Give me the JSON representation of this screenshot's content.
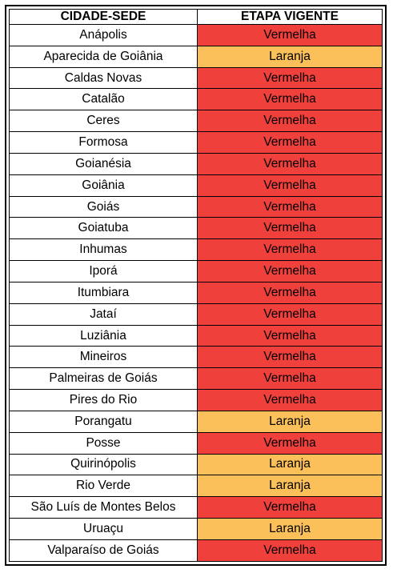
{
  "table": {
    "headers": {
      "city": "CIDADE-SEDE",
      "stage": "ETAPA VIGENTE"
    },
    "stage_colors": {
      "Vermelha": "#f0403c",
      "Laranja": "#fbc05a"
    },
    "rows": [
      {
        "city": "Anápolis",
        "stage": "Vermelha"
      },
      {
        "city": "Aparecida de Goiânia",
        "stage": "Laranja"
      },
      {
        "city": "Caldas Novas",
        "stage": "Vermelha"
      },
      {
        "city": "Catalão",
        "stage": "Vermelha"
      },
      {
        "city": "Ceres",
        "stage": "Vermelha"
      },
      {
        "city": "Formosa",
        "stage": "Vermelha"
      },
      {
        "city": "Goianésia",
        "stage": "Vermelha"
      },
      {
        "city": "Goiânia",
        "stage": "Vermelha"
      },
      {
        "city": "Goiás",
        "stage": "Vermelha"
      },
      {
        "city": "Goiatuba",
        "stage": "Vermelha"
      },
      {
        "city": "Inhumas",
        "stage": "Vermelha"
      },
      {
        "city": "Iporá",
        "stage": "Vermelha"
      },
      {
        "city": "Itumbiara",
        "stage": "Vermelha"
      },
      {
        "city": "Jataí",
        "stage": "Vermelha"
      },
      {
        "city": "Luziânia",
        "stage": "Vermelha"
      },
      {
        "city": "Mineiros",
        "stage": "Vermelha"
      },
      {
        "city": "Palmeiras de Goiás",
        "stage": "Vermelha"
      },
      {
        "city": "Pires do Rio",
        "stage": "Vermelha"
      },
      {
        "city": "Porangatu",
        "stage": "Laranja"
      },
      {
        "city": "Posse",
        "stage": "Vermelha"
      },
      {
        "city": "Quirinópolis",
        "stage": "Laranja"
      },
      {
        "city": "Rio Verde",
        "stage": "Laranja"
      },
      {
        "city": "São Luís de Montes Belos",
        "stage": "Vermelha"
      },
      {
        "city": "Uruaçu",
        "stage": "Laranja"
      },
      {
        "city": "Valparaíso de Goiás",
        "stage": "Vermelha"
      }
    ]
  }
}
